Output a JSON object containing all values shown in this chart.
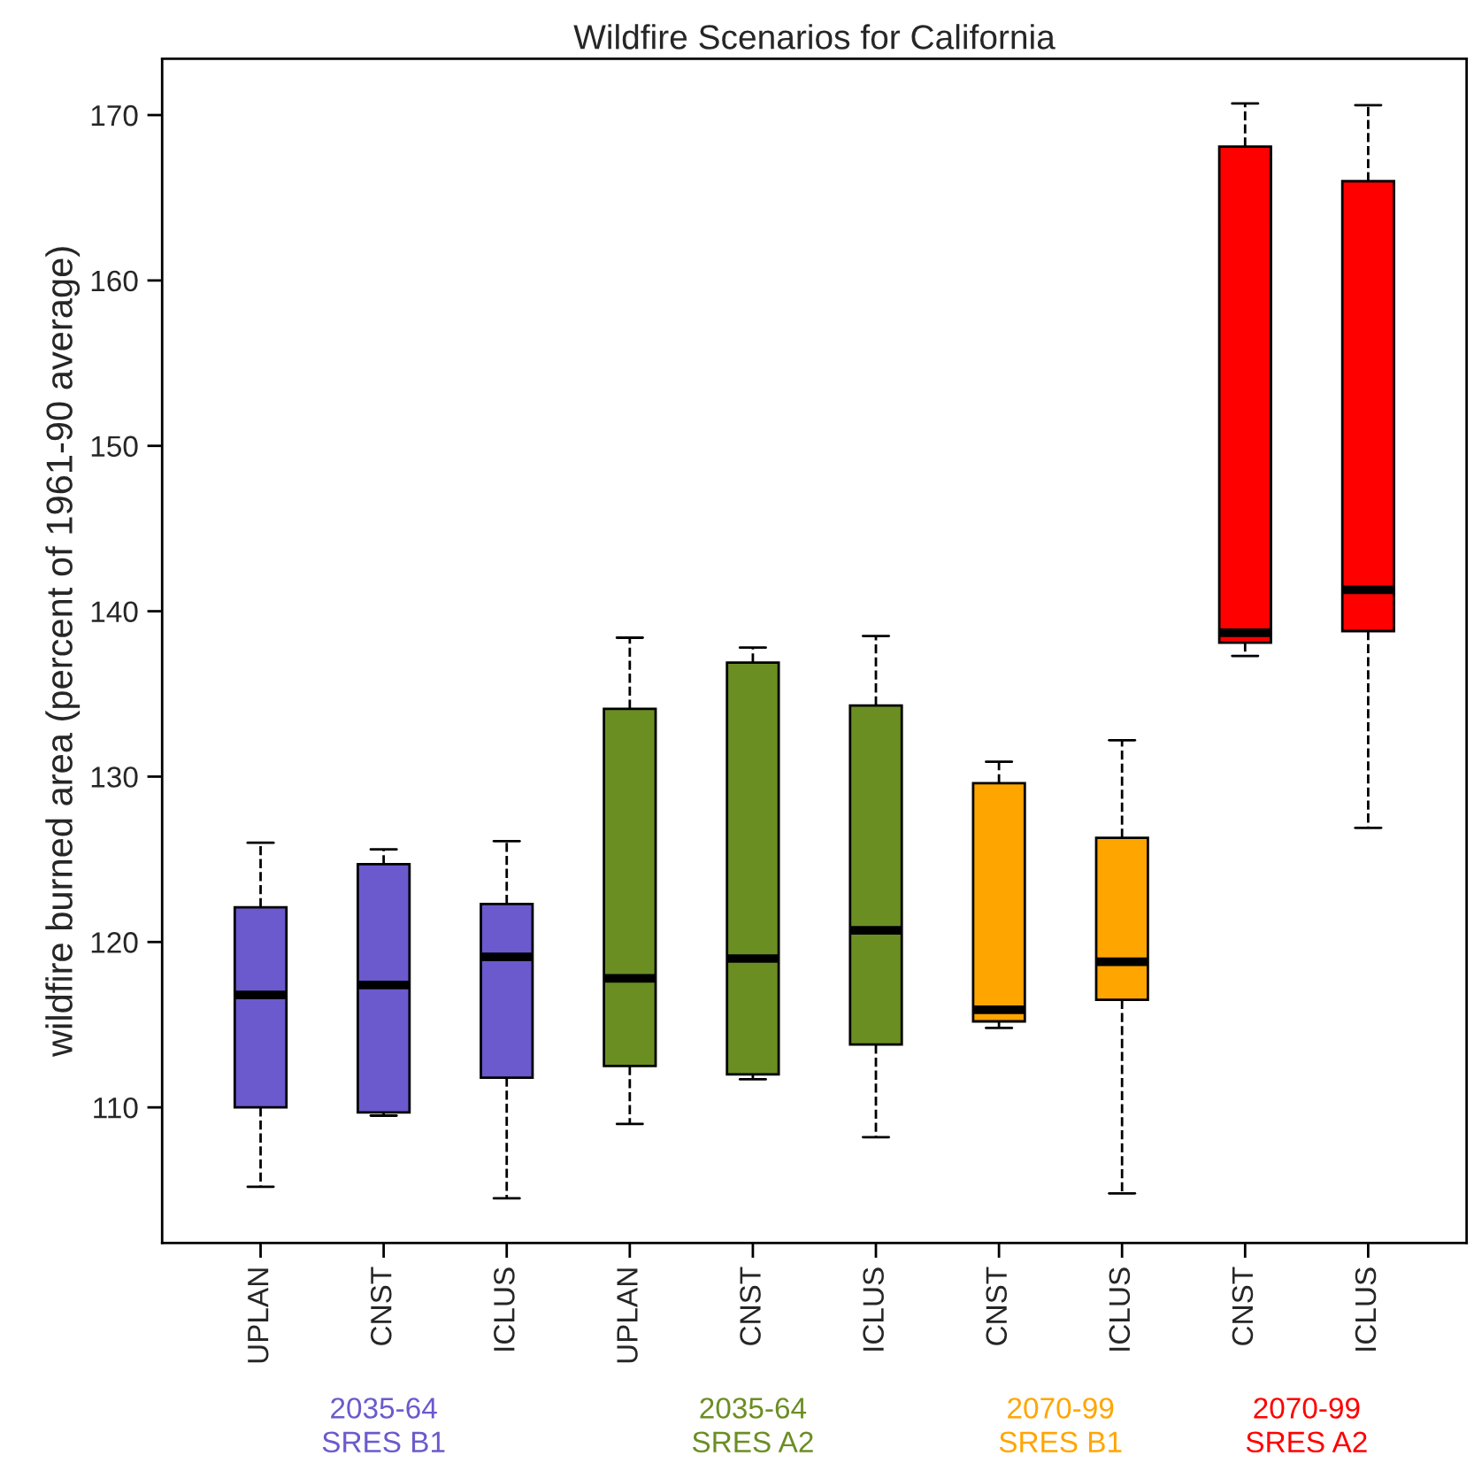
{
  "chart_data": {
    "type": "box",
    "title": "Wildfire Scenarios for California",
    "ylabel": "wildfire burned area (percent of 1961-90 average)",
    "categories": [
      "UPLAN",
      "CNST",
      "ICLUS",
      "UPLAN",
      "CNST",
      "ICLUS",
      "CNST",
      "ICLUS",
      "CNST",
      "ICLUS"
    ],
    "ylim": [
      101.8,
      173.4
    ],
    "yticks": [
      110,
      120,
      130,
      140,
      150,
      160,
      170
    ],
    "grid": false,
    "series": [
      {
        "name": "2035-64\nSRES B1",
        "color": "#6a5acd",
        "boxes": [
          {
            "low": 105.2,
            "q1": 110,
            "median": 116.8,
            "q3": 122.1,
            "high": 126
          },
          {
            "low": 109.5,
            "q1": 109.7,
            "median": 117.4,
            "q3": 124.7,
            "high": 125.6
          },
          {
            "low": 104.5,
            "q1": 111.8,
            "median": 119.1,
            "q3": 122.3,
            "high": 126.1
          },
          null,
          null,
          null,
          null,
          null,
          null,
          null
        ]
      },
      {
        "name": "2035-64\nSRES A2",
        "color": "#6b8e23",
        "boxes": [
          null,
          null,
          null,
          {
            "low": 109,
            "q1": 112.5,
            "median": 117.8,
            "q3": 134.1,
            "high": 138.4
          },
          {
            "low": 111.7,
            "q1": 112,
            "median": 119,
            "q3": 136.9,
            "high": 137.8
          },
          {
            "low": 108.2,
            "q1": 113.8,
            "median": 120.7,
            "q3": 134.3,
            "high": 138.5
          },
          null,
          null,
          null,
          null
        ]
      },
      {
        "name": "2070-99\nSRES B1",
        "color": "#ffa500",
        "boxes": [
          null,
          null,
          null,
          null,
          null,
          null,
          {
            "low": 114.8,
            "q1": 115.2,
            "median": 115.9,
            "q3": 129.6,
            "high": 130.9
          },
          {
            "low": 104.8,
            "q1": 116.5,
            "median": 118.8,
            "q3": 126.3,
            "high": 132.2
          },
          null,
          null
        ]
      },
      {
        "name": "2070-99\nSRES A2",
        "color": "#ff0000",
        "boxes": [
          null,
          null,
          null,
          null,
          null,
          null,
          null,
          null,
          {
            "low": 137.3,
            "q1": 138.1,
            "median": 138.7,
            "q3": 168.1,
            "high": 170.7
          },
          {
            "low": 126.9,
            "q1": 138.8,
            "median": 141.3,
            "q3": 166,
            "high": 170.6
          }
        ]
      }
    ]
  }
}
